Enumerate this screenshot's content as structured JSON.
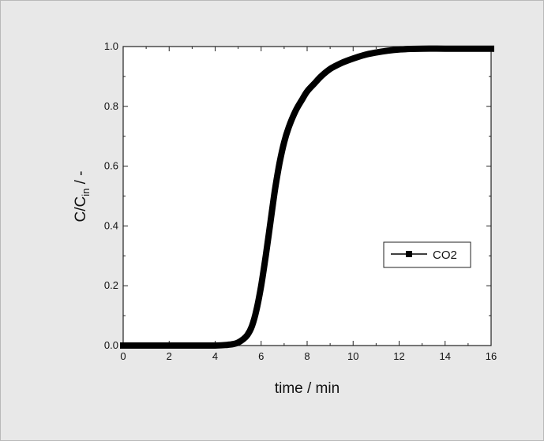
{
  "chart_data": {
    "type": "line",
    "xlabel": "time / min",
    "ylabel": {
      "main": "C/C",
      "sub": "in",
      "suffix": " / -"
    },
    "xlim": [
      0,
      16
    ],
    "ylim": [
      0,
      1.0
    ],
    "x_ticks": [
      0,
      2,
      4,
      6,
      8,
      10,
      12,
      14,
      16
    ],
    "x_tick_labels": [
      "0",
      "2",
      "4",
      "6",
      "8",
      "10",
      "12",
      "14",
      "16"
    ],
    "y_ticks": [
      0.0,
      0.2,
      0.4,
      0.6,
      0.8,
      1.0
    ],
    "y_tick_labels": [
      "0.0",
      "0.2",
      "0.4",
      "0.6",
      "0.8",
      "1.0"
    ],
    "grid": false,
    "legend_position": "right-middle",
    "series": [
      {
        "name": "CO2",
        "color": "#000000",
        "x": [
          0,
          1,
          2,
          3,
          4,
          4.5,
          4.8,
          5.0,
          5.2,
          5.4,
          5.6,
          5.8,
          6.0,
          6.2,
          6.4,
          6.6,
          6.8,
          7.0,
          7.2,
          7.5,
          7.8,
          8.0,
          8.3,
          8.6,
          9.0,
          9.5,
          10.0,
          10.5,
          11.0,
          11.5,
          12.0,
          12.5,
          13.0,
          14.0,
          15.0,
          16.0
        ],
        "y": [
          0.0,
          0.0,
          0.0,
          0.0,
          0.0,
          0.002,
          0.005,
          0.01,
          0.02,
          0.035,
          0.065,
          0.12,
          0.2,
          0.3,
          0.41,
          0.52,
          0.61,
          0.68,
          0.73,
          0.785,
          0.825,
          0.85,
          0.875,
          0.9,
          0.925,
          0.945,
          0.96,
          0.972,
          0.98,
          0.986,
          0.99,
          0.992,
          0.993,
          0.993,
          0.993,
          0.993
        ]
      }
    ]
  }
}
